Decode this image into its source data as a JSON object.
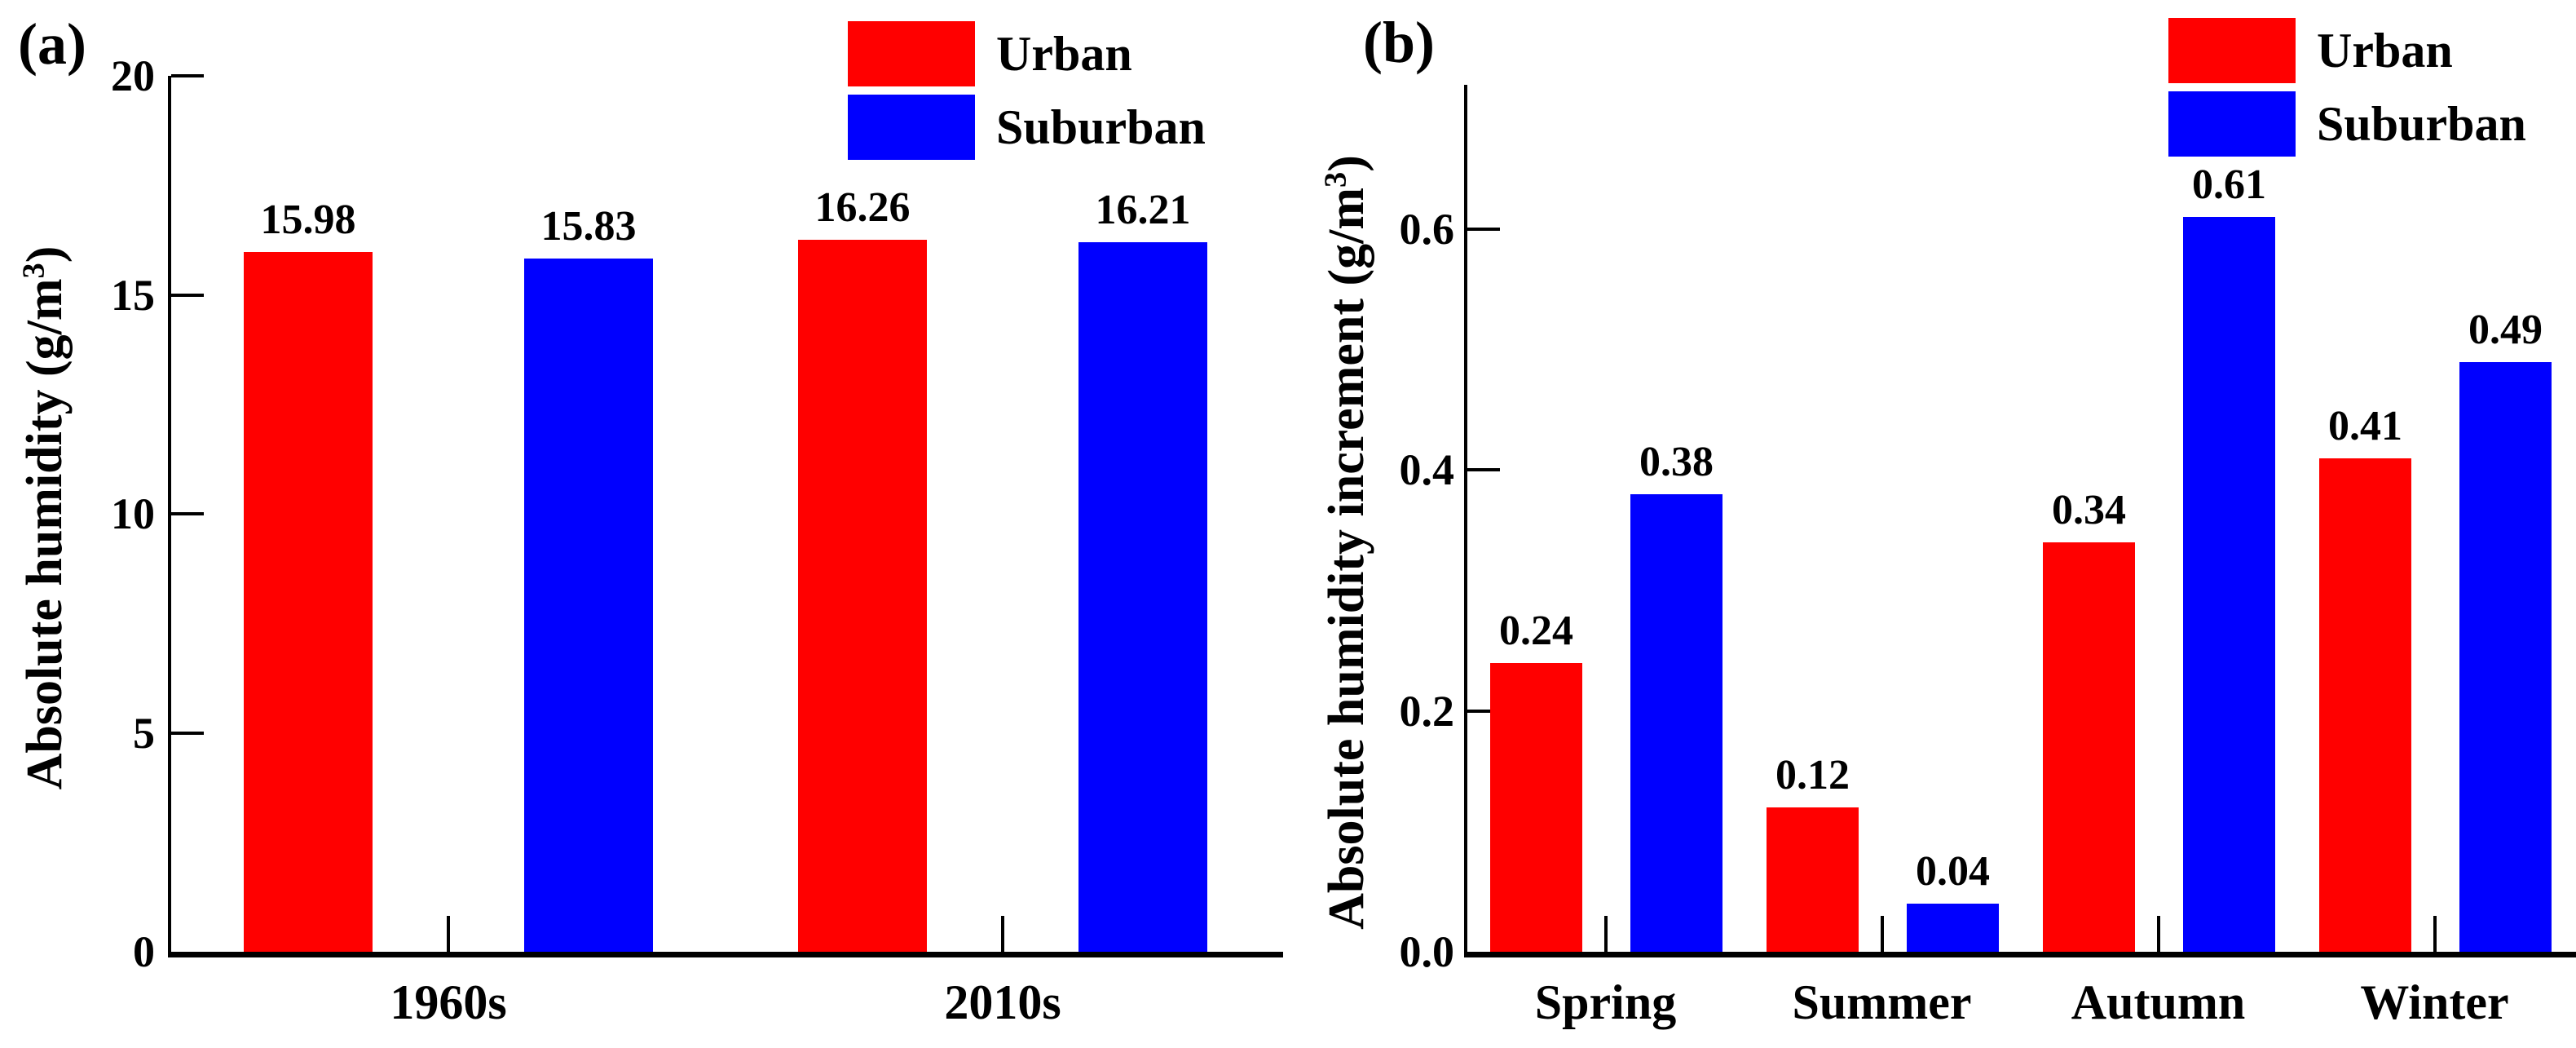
{
  "colors": {
    "urban": "#ff0000",
    "suburban": "#0000ff",
    "axis": "#000000",
    "text": "#000000",
    "background": "#ffffff"
  },
  "chart_data": [
    {
      "id": "a",
      "type": "bar",
      "panel_label": "(a)",
      "ylabel": "Absolute humidity (g/m³)",
      "ylabel_parts": {
        "prefix": "Absolute humidity (g/m",
        "sup": "3",
        "suffix": ")"
      },
      "xlabel": "",
      "categories": [
        "1960s",
        "2010s"
      ],
      "series": [
        {
          "name": "Urban",
          "color": "#ff0000",
          "values": [
            15.98,
            16.26
          ],
          "labels": [
            "15.98",
            "16.26"
          ]
        },
        {
          "name": "Suburban",
          "color": "#0000ff",
          "values": [
            15.83,
            16.21
          ],
          "labels": [
            "15.83",
            "16.21"
          ]
        }
      ],
      "ylim": [
        0,
        20
      ],
      "yticks": [
        0,
        5,
        10,
        15,
        20
      ],
      "ytick_labels": [
        "0",
        "5",
        "10",
        "15",
        "20"
      ],
      "grid": false,
      "legend_position": "top-right-inside"
    },
    {
      "id": "b",
      "type": "bar",
      "panel_label": "(b)",
      "ylabel": "Absolute humidity increment (g/m³)",
      "ylabel_parts": {
        "prefix": "Absolute humidity increment (g/m",
        "sup": "3",
        "suffix": ")"
      },
      "xlabel": "",
      "categories": [
        "Spring",
        "Summer",
        "Autumn",
        "Winter"
      ],
      "series": [
        {
          "name": "Urban",
          "color": "#ff0000",
          "values": [
            0.24,
            0.12,
            0.34,
            0.41
          ],
          "labels": [
            "0.24",
            "0.12",
            "0.34",
            "0.41"
          ]
        },
        {
          "name": "Suburban",
          "color": "#0000ff",
          "values": [
            0.38,
            0.04,
            0.61,
            0.49
          ],
          "labels": [
            "0.38",
            "0.04",
            "0.61",
            "0.49"
          ]
        }
      ],
      "ylim": [
        0,
        0.72
      ],
      "yticks": [
        0,
        0.2,
        0.4,
        0.6
      ],
      "ytick_labels": [
        "0.0",
        "0.2",
        "0.4",
        "0.6"
      ],
      "grid": false,
      "legend_position": "top-right-inside"
    }
  ]
}
